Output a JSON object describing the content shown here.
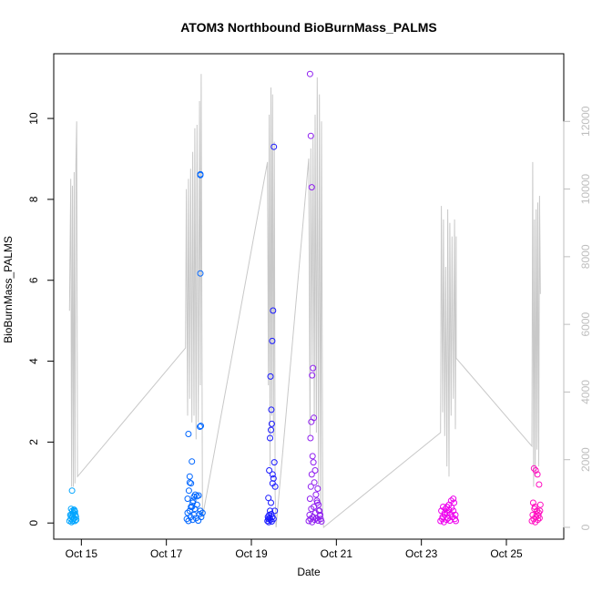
{
  "chart_data": {
    "type": "scatter",
    "title": "ATOM3 Northbound BioBurnMass_PALMS",
    "xlabel": "Date",
    "ylabel": "BioBurnMass_PALMS",
    "x_unit": "days of October 2017",
    "xlim": [
      14.35,
      26.35
    ],
    "ylim": [
      -0.4,
      11.6
    ],
    "y2lim": [
      -350,
      14000
    ],
    "x_ticks": [
      {
        "value": 15,
        "label": "Oct 15"
      },
      {
        "value": 17,
        "label": "Oct 17"
      },
      {
        "value": 19,
        "label": "Oct 19"
      },
      {
        "value": 21,
        "label": "Oct 21"
      },
      {
        "value": 23,
        "label": "Oct 23"
      },
      {
        "value": 25,
        "label": "Oct 25"
      }
    ],
    "y_ticks": [
      {
        "value": 0,
        "label": "0"
      },
      {
        "value": 2,
        "label": "2"
      },
      {
        "value": 4,
        "label": "4"
      },
      {
        "value": 6,
        "label": "6"
      },
      {
        "value": 8,
        "label": "8"
      },
      {
        "value": 10,
        "label": "10"
      }
    ],
    "y2_ticks": [
      {
        "value": 0,
        "label": "0"
      },
      {
        "value": 2000,
        "label": "2000"
      },
      {
        "value": 4000,
        "label": "4000"
      },
      {
        "value": 6000,
        "label": "6000"
      },
      {
        "value": 8000,
        "label": "8000"
      },
      {
        "value": 10000,
        "label": "10000"
      },
      {
        "value": 12000,
        "label": "12000"
      }
    ],
    "grid": false,
    "legend": "none",
    "colors": {
      "altitude_line": "#c8c8c8",
      "point_colors": [
        "#00a5ff",
        "#0066ff",
        "#1a1aff",
        "#9020f0",
        "#ee00ee",
        "#ff10c0"
      ]
    },
    "flights": [
      {
        "color": "#00a5ff",
        "altitude": {
          "x": [
            14.72,
            14.75,
            14.77,
            14.79,
            14.81,
            14.83,
            14.85,
            14.87,
            14.89,
            14.91
          ],
          "y": [
            6400,
            10300,
            1200,
            10100,
            1200,
            10500,
            1300,
            10700,
            12000,
            1500
          ]
        },
        "points": {
          "x": [
            14.72,
            14.74,
            14.75,
            14.76,
            14.77,
            14.78,
            14.79,
            14.8,
            14.81,
            14.82,
            14.83,
            14.84,
            14.85,
            14.86,
            14.87,
            14.88,
            14.78,
            14.8,
            14.83,
            14.76,
            14.85
          ],
          "y": [
            0.05,
            0.2,
            0.1,
            0.35,
            0.02,
            0.15,
            0.3,
            0.05,
            0.25,
            0.1,
            0.12,
            0.3,
            0.05,
            0.2,
            0.15,
            0.08,
            0.8,
            0.22,
            0.33,
            0.18,
            0.28
          ]
        }
      },
      {
        "color": "#0066ff",
        "altitude": {
          "x": [
            14.91,
            17.45,
            17.47,
            17.5,
            17.52,
            17.55,
            17.57,
            17.6,
            17.62,
            17.65,
            17.67,
            17.7,
            17.72,
            17.75,
            17.78,
            17.8,
            17.82,
            17.85
          ],
          "y": [
            1500,
            5300,
            10000,
            3300,
            10300,
            3800,
            10600,
            3100,
            11100,
            3300,
            11800,
            2600,
            11900,
            3100,
            12600,
            4200,
            13400,
            300
          ]
        },
        "points": {
          "x": [
            17.48,
            17.5,
            17.52,
            17.55,
            17.57,
            17.6,
            17.62,
            17.65,
            17.67,
            17.7,
            17.72,
            17.75,
            17.78,
            17.8,
            17.82,
            17.85,
            17.5,
            17.53,
            17.55,
            17.58,
            17.6,
            17.63,
            17.65,
            17.68,
            17.72,
            17.76,
            17.8,
            17.55,
            17.58,
            17.62,
            17.52
          ],
          "y": [
            0.1,
            0.25,
            0.05,
            0.3,
            0.15,
            0.4,
            0.08,
            0.2,
            0.35,
            0.12,
            0.45,
            0.06,
            0.22,
            0.3,
            0.15,
            0.25,
            0.6,
            0.8,
            1.0,
            0.98,
            1.52,
            0.55,
            0.65,
            0.7,
            0.66,
            0.68,
            8.6,
            1.15,
            0.4,
            0.5,
            2.2
          ]
        },
        "extra_points": {
          "x": [
            17.8,
            17.8,
            17.81,
            17.79
          ],
          "y": [
            8.62,
            6.17,
            2.4,
            2.38
          ]
        }
      },
      {
        "color": "#1a1aff",
        "altitude": {
          "x": [
            17.85,
            19.38,
            19.4,
            19.42,
            19.44,
            19.46,
            19.48,
            19.5,
            19.52,
            19.54,
            19.56,
            19.58
          ],
          "y": [
            300,
            10800,
            4200,
            12200,
            1800,
            13000,
            3300,
            12800,
            2700,
            11400,
            1000,
            0
          ]
        },
        "points": {
          "x": [
            19.38,
            19.39,
            19.4,
            19.41,
            19.42,
            19.43,
            19.44,
            19.45,
            19.46,
            19.47,
            19.48,
            19.49,
            19.5,
            19.52,
            19.54,
            19.56,
            19.4,
            19.42,
            19.44,
            19.46,
            19.48,
            19.5,
            19.52,
            19.55,
            19.45,
            19.47,
            19.49,
            19.51,
            19.53
          ],
          "y": [
            0.05,
            0.15,
            0.1,
            0.02,
            0.2,
            0.12,
            0.3,
            0.08,
            0.5,
            0.22,
            0.04,
            0.15,
            1.2,
            1.1,
            1.5,
            0.9,
            0.62,
            1.3,
            2.1,
            2.3,
            2.45,
            0.98,
            0.1,
            0.3,
            3.62,
            2.8,
            4.5,
            5.25,
            9.3
          ]
        }
      },
      {
        "color": "#9020f0",
        "altitude": {
          "x": [
            19.58,
            20.35,
            20.38,
            20.4,
            20.43,
            20.45,
            20.48,
            20.5,
            20.53,
            20.55,
            20.58,
            20.6,
            20.63,
            20.65,
            20.68,
            20.7
          ],
          "y": [
            0,
            10900,
            2700,
            11200,
            4800,
            11600,
            3100,
            12200,
            2800,
            13300,
            1200,
            12800,
            500,
            12000,
            300,
            0
          ]
        },
        "points": {
          "x": [
            20.35,
            20.37,
            20.39,
            20.41,
            20.43,
            20.45,
            20.47,
            20.49,
            20.51,
            20.53,
            20.55,
            20.57,
            20.59,
            20.61,
            20.63,
            20.65,
            20.38,
            20.4,
            20.42,
            20.44,
            20.46,
            20.48,
            20.5,
            20.52,
            20.54,
            20.56,
            20.58,
            20.6,
            20.62,
            20.43,
            20.45,
            20.47,
            20.41
          ],
          "y": [
            0.05,
            0.2,
            0.1,
            0.35,
            0.02,
            0.15,
            0.4,
            0.08,
            0.25,
            0.12,
            0.5,
            0.06,
            0.3,
            0.18,
            0.1,
            0.04,
            0.6,
            0.9,
            1.2,
            1.65,
            1.5,
            1.0,
            1.3,
            0.7,
            0.55,
            0.85,
            0.45,
            0.3,
            0.2,
            3.65,
            3.83,
            2.6,
            2.5
          ]
        },
        "extra_points": {
          "x": [
            20.38,
            20.4,
            20.42,
            20.39
          ],
          "y": [
            11.1,
            9.57,
            8.3,
            2.1
          ]
        }
      },
      {
        "color": "#ee00ee",
        "altitude": {
          "x": [
            20.7,
            23.45,
            23.47,
            23.5,
            23.52,
            23.55,
            23.57,
            23.6,
            23.62,
            23.65,
            23.67,
            23.7,
            23.72,
            23.75,
            23.78,
            23.8,
            23.82
          ],
          "y": [
            0,
            2800,
            9500,
            3400,
            9100,
            2700,
            7700,
            1800,
            9400,
            1500,
            9000,
            3300,
            8600,
            3800,
            9100,
            2900,
            8600
          ]
        },
        "points": {
          "x": [
            23.45,
            23.47,
            23.49,
            23.51,
            23.53,
            23.55,
            23.57,
            23.59,
            23.61,
            23.63,
            23.65,
            23.67,
            23.69,
            23.71,
            23.73,
            23.75,
            23.77,
            23.79,
            23.81,
            23.5,
            23.55,
            23.6,
            23.65,
            23.7,
            23.75,
            23.8
          ],
          "y": [
            0.05,
            0.3,
            0.1,
            0.4,
            0.02,
            0.2,
            0.35,
            0.08,
            0.25,
            0.12,
            0.45,
            0.06,
            0.22,
            0.38,
            0.15,
            0.3,
            0.5,
            0.1,
            0.05,
            0.15,
            0.25,
            0.4,
            0.32,
            0.55,
            0.6,
            0.2
          ]
        }
      },
      {
        "color": "#ff10c0",
        "altitude": {
          "x": [
            23.82,
            25.6,
            25.62,
            25.64,
            25.66,
            25.68,
            25.7,
            25.72,
            25.74,
            25.76,
            25.78,
            25.8
          ],
          "y": [
            5000,
            2400,
            10800,
            1200,
            9100,
            1500,
            9400,
            2300,
            9600,
            1800,
            9800,
            6900
          ]
        },
        "points": {
          "x": [
            25.6,
            25.62,
            25.64,
            25.66,
            25.68,
            25.7,
            25.72,
            25.74,
            25.76,
            25.78,
            25.8,
            25.63,
            25.67,
            25.71,
            25.75,
            25.79,
            25.65,
            25.69,
            25.73,
            25.77
          ],
          "y": [
            0.05,
            0.2,
            0.1,
            0.35,
            0.02,
            0.15,
            0.3,
            0.08,
            0.25,
            0.12,
            0.45,
            0.5,
            0.4,
            0.22,
            0.18,
            0.3,
            1.35,
            1.3,
            1.2,
            0.95
          ]
        }
      }
    ]
  }
}
